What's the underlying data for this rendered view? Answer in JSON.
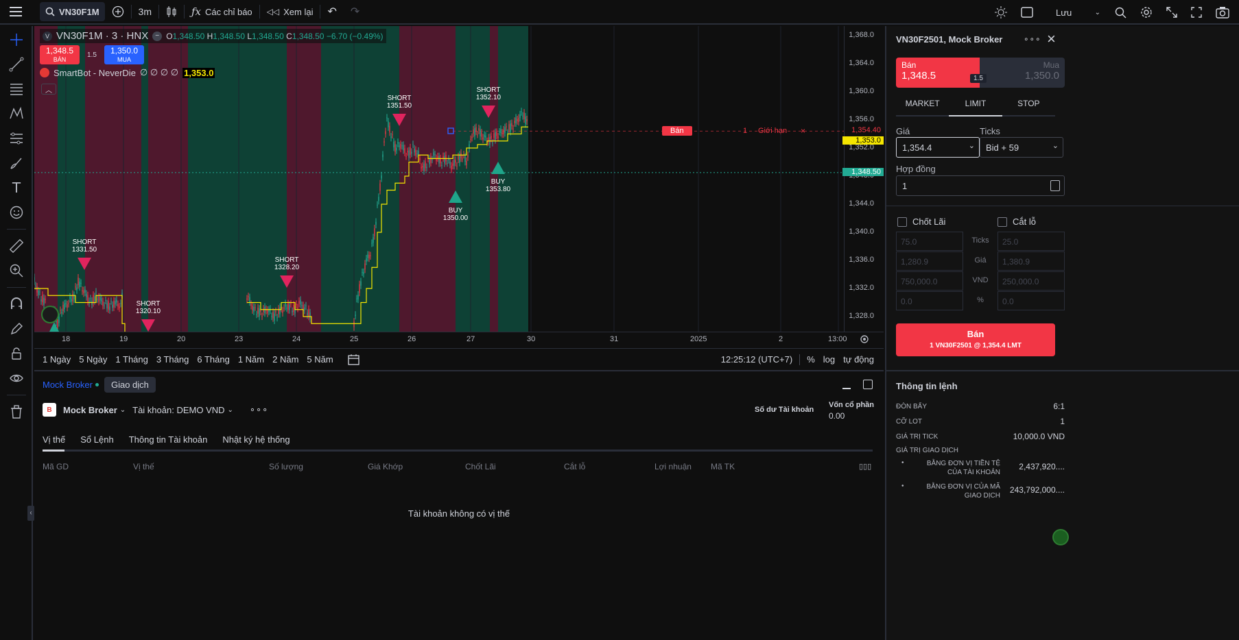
{
  "topbar": {
    "symbol": "VN30F1M",
    "interval": "3m",
    "indicators_label": "Các chỉ báo",
    "replay_label": "Xem lại",
    "save_label": "Lưu"
  },
  "legend": {
    "symbol": "VN30F1M · 3 · HNX",
    "o_label": "O",
    "o_value": "1,348.50",
    "h_label": "H",
    "h_value": "1,348.50",
    "l_label": "L",
    "l_value": "1,348.50",
    "c_label": "C",
    "c_value": "1,348.50",
    "change": "−6.70 (−0.49%)"
  },
  "quick_trade": {
    "sell_price": "1,348.5",
    "sell_label": "BÁN",
    "spread": "1.5",
    "buy_price": "1,350.0",
    "buy_label": "MUA"
  },
  "indicator": {
    "name": "SmartBot - NeverDie",
    "nulls": "∅ ∅ ∅ ∅",
    "value": "1,353.0"
  },
  "price_axis": {
    "ticks": [
      "1,368.0",
      "1,364.0",
      "1,360.0",
      "1,356.0",
      "1,352.0",
      "1,348.0",
      "1,344.0",
      "1,340.0",
      "1,336.0",
      "1,332.0",
      "1,328.0"
    ],
    "order_price": "1,354.40",
    "indicator_price": "1,353.0",
    "last_price": "1,348.50"
  },
  "time_axis": [
    "18",
    "19",
    "20",
    "23",
    "24",
    "25",
    "26",
    "27",
    "30",
    "31",
    "2025",
    "2",
    "13:00"
  ],
  "signals": [
    {
      "label": "SHORT",
      "price": "1331.50"
    },
    {
      "label": "SHORT",
      "price": "1320.10"
    },
    {
      "label": "SHORT",
      "price": "1328.20"
    },
    {
      "label": "SHORT",
      "price": "1351.50"
    },
    {
      "label": "BUY",
      "price": "1350.00"
    },
    {
      "label": "SHORT",
      "price": "1352.10"
    },
    {
      "label": "BUY",
      "price": "1353.80"
    }
  ],
  "order_line": {
    "side": "Bán",
    "qty": "1",
    "type": "Giới hạn"
  },
  "ranges": [
    "1 Ngày",
    "5 Ngày",
    "1 Tháng",
    "3 Tháng",
    "6 Tháng",
    "1 Năm",
    "2 Năm",
    "5 Năm"
  ],
  "rangebar_right": {
    "clock": "12:25:12 (UTC+7)",
    "pct": "%",
    "log": "log",
    "auto": "tự động"
  },
  "bottom": {
    "broker_tab": "Mock Broker",
    "trade_tab": "Giao dịch",
    "broker_name": "Mock Broker",
    "account": "Tài khoản: DEMO VND",
    "balance_label": "Số dư Tài khoản",
    "equity_label": "Vốn cổ phần",
    "equity_value": "0.00",
    "tabs": [
      "Vị thế",
      "Sổ Lệnh",
      "Thông tin Tài khoản",
      "Nhật ký hệ thống"
    ],
    "columns": [
      "Mã GD",
      "Vị thế",
      "Số lượng",
      "Giá Khớp",
      "Chốt Lãi",
      "Cắt lỗ",
      "Lợi nhuận",
      "Mã TK"
    ],
    "empty": "Tài khoản không có vị thế"
  },
  "order_panel": {
    "title": "VN30F2501, Mock Broker",
    "sell_label": "Bán",
    "sell_price": "1,348.5",
    "buy_label": "Mua",
    "buy_price": "1,350.0",
    "spread": "1.5",
    "types": [
      "MARKET",
      "LIMIT",
      "STOP"
    ],
    "price_label": "Giá",
    "price_value": "1,354.4",
    "ticks_label": "Ticks",
    "ticks_value": "Bid + 59",
    "contracts_label": "Hợp đồng",
    "contracts_value": "1",
    "tp_label": "Chốt Lãi",
    "sl_label": "Cắt lỗ",
    "tp_values": [
      "75.0",
      "1,280.9",
      "750,000.0",
      "0.0"
    ],
    "sl_values": [
      "25.0",
      "1,380.9",
      "250,000.0",
      "0.0"
    ],
    "row_labels": [
      "Ticks",
      "Giá",
      "VND",
      "%"
    ],
    "submit_main": "Bán",
    "submit_sub": "1 VN30F2501 @ 1,354.4 LMT",
    "info_title": "Thông tin lệnh",
    "leverage_label": "ĐÒN BẨY",
    "leverage_value": "6:1",
    "lot_label": "CỠ LOT",
    "lot_value": "1",
    "tick_value_label": "GIÁ TRỊ TICK",
    "tick_value": "10,000.0 VND",
    "trade_value_label": "GIÁ TRỊ GIAO DỊCH",
    "acct_ccy_label": "BẰNG ĐƠN VỊ TIỀN TỆ CỦA TÀI KHOẢN",
    "acct_ccy_value": "2,437,920....",
    "sym_ccy_label": "BẰNG ĐƠN VỊ CỦA MÃ GIAO DỊCH",
    "sym_ccy_value": "243,792,000...."
  },
  "colors": {
    "up": "#22ab94",
    "down": "#f23645",
    "accent": "#2962ff",
    "indicator": "#f5e600"
  }
}
